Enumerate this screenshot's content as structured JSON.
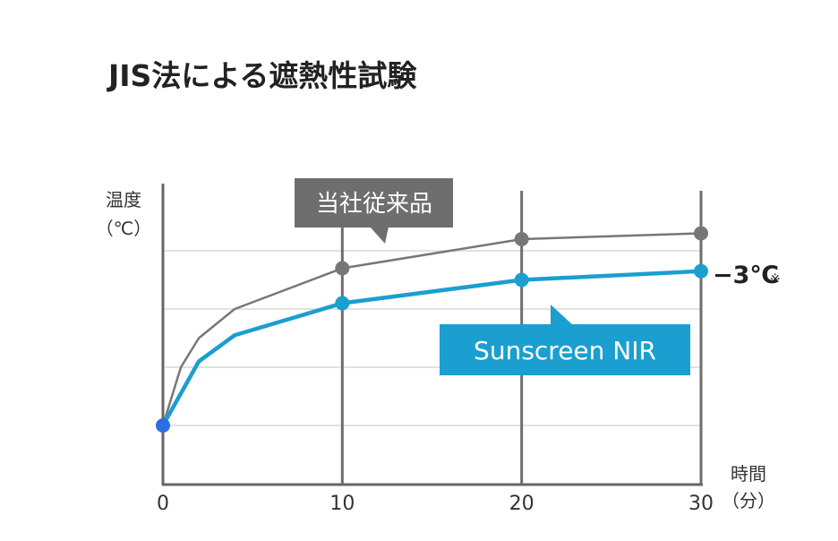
{
  "chart_data": {
    "type": "line",
    "title": "JIS法による遮熱性試験",
    "ylabel_line1": "温度",
    "ylabel_line2": "（℃）",
    "xlabel_line1": "時間",
    "xlabel_line2": "（分）",
    "xlim": [
      0,
      30
    ],
    "x_ticks": [
      "0",
      "10",
      "20",
      "30"
    ],
    "grid": true,
    "series": [
      {
        "name": "当社従来品",
        "color": "#777777",
        "x": [
          0,
          1,
          2,
          4,
          10,
          20,
          30
        ],
        "values": [
          0,
          1.0,
          1.5,
          2.0,
          2.7,
          3.2,
          3.3
        ],
        "markers_at": [
          10,
          20,
          30
        ]
      },
      {
        "name": "Sunscreen NIR",
        "color": "#1a9fd0",
        "x": [
          0,
          2,
          4,
          10,
          20,
          30
        ],
        "values": [
          0,
          1.1,
          1.55,
          2.1,
          2.5,
          2.65
        ],
        "markers_at": [
          0,
          10,
          20,
          30
        ]
      }
    ],
    "start_marker_color": "#2a6fe0",
    "annotation": {
      "text": "−3℃",
      "mark": "※"
    }
  }
}
